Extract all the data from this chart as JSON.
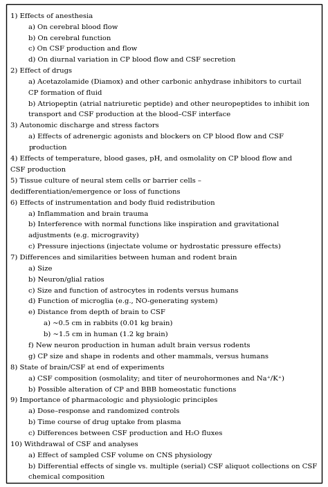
{
  "lines": [
    {
      "text": "1) Effects of anesthesia",
      "indent": 0
    },
    {
      "text": "a) On cerebral blood flow",
      "indent": 1
    },
    {
      "text": "b) On cerebral function",
      "indent": 1
    },
    {
      "text": "c) On CSF production and flow",
      "indent": 1
    },
    {
      "text": "d) On diurnal variation in CP blood flow and CSF secretion",
      "indent": 1
    },
    {
      "text": "2) Effect of drugs",
      "indent": 0
    },
    {
      "text": "a) Acetazolamide (Diamox) and other carbonic anhydrase inhibitors to curtail",
      "indent": 1
    },
    {
      "text": "CP formation of fluid",
      "indent": 1
    },
    {
      "text": "b) Atriopeptin (atrial natriuretic peptide) and other neuropeptides to inhibit ion",
      "indent": 1
    },
    {
      "text": "transport and CSF production at the blood–CSF interface",
      "indent": 1
    },
    {
      "text": "3) Autonomic discharge and stress factors",
      "indent": 0
    },
    {
      "text": "a) Effects of adrenergic agonists and blockers on CP blood flow and CSF",
      "indent": 1
    },
    {
      "text": "production",
      "indent": 1
    },
    {
      "text": "4) Effects of temperature, blood gases, pH, and osmolality on CP blood flow and",
      "indent": 0
    },
    {
      "text": "CSF production",
      "indent": 0
    },
    {
      "text": "5) Tissue culture of neural stem cells or barrier cells –",
      "indent": 0
    },
    {
      "text": "dedifferentiation/emergence or loss of functions",
      "indent": 0
    },
    {
      "text": "6) Effects of instrumentation and body fluid redistribution",
      "indent": 0
    },
    {
      "text": "a) Inflammation and brain trauma",
      "indent": 1
    },
    {
      "text": "b) Interference with normal functions like inspiration and gravitational",
      "indent": 1
    },
    {
      "text": "adjustments (e.g. microgravity)",
      "indent": 1
    },
    {
      "text": "c) Pressure injections (injectate volume or hydrostatic pressure effects)",
      "indent": 1
    },
    {
      "text": "7) Differences and similarities between human and rodent brain",
      "indent": 0
    },
    {
      "text": "a) Size",
      "indent": 1
    },
    {
      "text": "b) Neuron/glial ratios",
      "indent": 1
    },
    {
      "text": "c) Size and function of astrocytes in rodents versus humans",
      "indent": 1
    },
    {
      "text": "d) Function of microglia (e.g., NO-generating system)",
      "indent": 1
    },
    {
      "text": "e) Distance from depth of brain to CSF",
      "indent": 1
    },
    {
      "text": "a) ~0.5 cm in rabbits (0.01 kg brain)",
      "indent": 2
    },
    {
      "text": "b) ~1.5 cm in human (1.2 kg brain)",
      "indent": 2
    },
    {
      "text": "f) New neuron production in human adult brain versus rodents",
      "indent": 1
    },
    {
      "text": "g) CP size and shape in rodents and other mammals, versus humans",
      "indent": 1
    },
    {
      "text": "8) State of brain/CSF at end of experiments",
      "indent": 0
    },
    {
      "text": "a) CSF composition (osmolality; and titer of neurohormones and Na⁺/K⁺)",
      "indent": 1
    },
    {
      "text": "b) Possible alteration of CP and BBB homeostatic functions",
      "indent": 1
    },
    {
      "text": "9) Importance of pharmacologic and physiologic principles",
      "indent": 0
    },
    {
      "text": "a) Dose–response and randomized controls",
      "indent": 1
    },
    {
      "text": "b) Time course of drug uptake from plasma",
      "indent": 1
    },
    {
      "text": "c) Differences between CSF production and H₂O fluxes",
      "indent": 1
    },
    {
      "text": "10) Withdrawal of CSF and analyses",
      "indent": 0
    },
    {
      "text": "a) Effect of sampled CSF volume on CNS physiology",
      "indent": 1
    },
    {
      "text": "b) Differential effects of single vs. multiple (serial) CSF aliquot collections on CSF",
      "indent": 1
    },
    {
      "text": "chemical composition",
      "indent": 1
    }
  ],
  "font_size": 7.2,
  "indent_pts_1": 0.055,
  "indent_pts_2": 0.1,
  "bg_color": "#ffffff",
  "text_color": "#000000",
  "border_color": "#000000",
  "fig_width": 4.74,
  "fig_height": 7.04
}
